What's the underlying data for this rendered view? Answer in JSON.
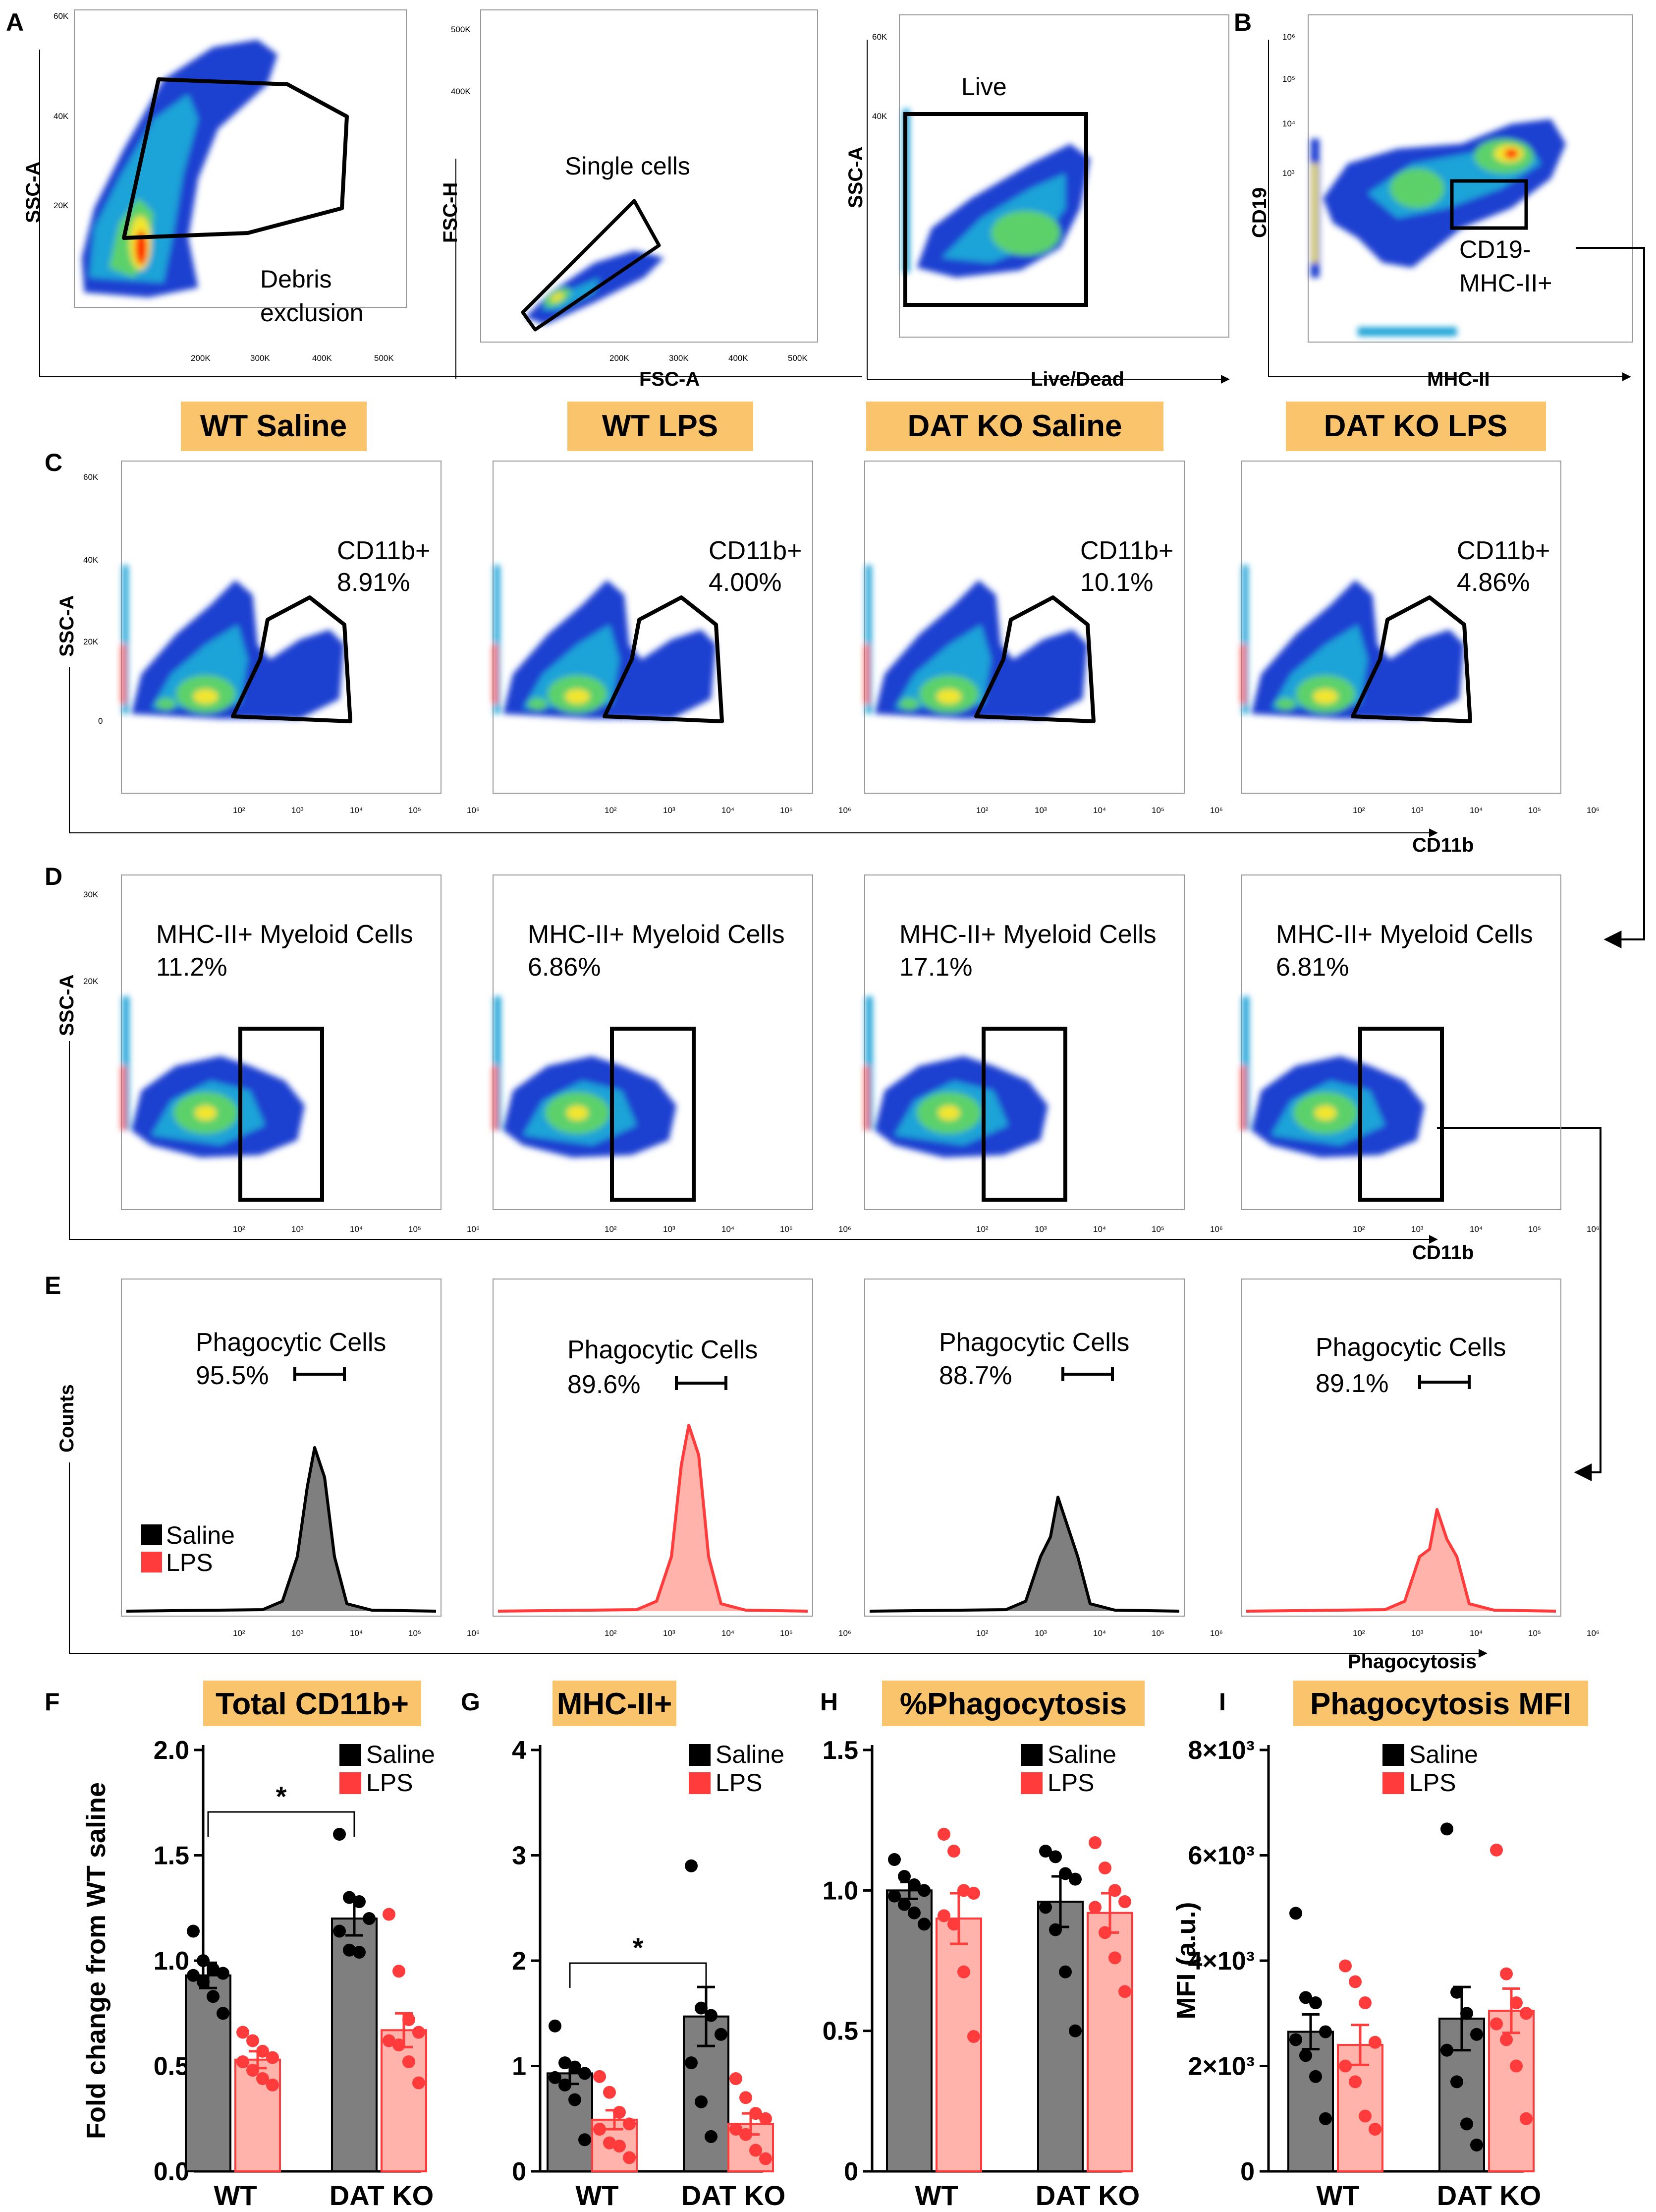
{
  "colors": {
    "saline": "#000000",
    "lps": "#ff3b3b",
    "saline_bar": "#7f7f7f",
    "lps_bar": "#ffb3ab",
    "header_bg": "#f9c46c",
    "density_outer": "#1a3fd0",
    "density_mid": "#1fa3d8",
    "density_core": "#5cd16a",
    "density_peak": "#f2e52e",
    "density_max": "#ff2a00"
  },
  "panel_letters": [
    "A",
    "B",
    "C",
    "D",
    "E",
    "F",
    "G",
    "H",
    "I"
  ],
  "group_headers": [
    "WT Saline",
    "WT LPS",
    "DAT KO Saline",
    "DAT KO LPS"
  ],
  "row_a": {
    "debris": {
      "y_label": "SSC-A",
      "y_ticks": [
        "60K",
        "40K",
        "20K"
      ],
      "x_ticks": [
        "200K",
        "300K",
        "400K",
        "500K"
      ],
      "gate": [
        "Debris",
        "exclusion"
      ]
    },
    "singlets": {
      "y_label": "FSC-H",
      "y_ticks": [
        "500K",
        "400K"
      ],
      "x_label": "FSC-A",
      "x_ticks": [
        "200K",
        "300K",
        "400K",
        "500K"
      ],
      "gate": "Single cells"
    },
    "live": {
      "y_label": "SSC-A",
      "y_ticks": [
        "60K",
        "40K"
      ],
      "x_label": "Live/Dead",
      "gate": "Live"
    },
    "b_plot": {
      "y_label": "CD19",
      "y_ticks": [
        "10⁶",
        "10⁵",
        "10⁴",
        "10³"
      ],
      "x_label": "MHC-II",
      "gate": [
        "CD19-",
        "MHC-II+"
      ]
    }
  },
  "log_ticks": [
    "10²",
    "10³",
    "10⁴",
    "10⁵",
    "10⁶"
  ],
  "row_c": {
    "y_label": "SSC-A",
    "y_ticks": [
      "60K",
      "40K",
      "20K",
      "0"
    ],
    "x_label": "CD11b",
    "gate_name": "CD11b+",
    "percents": [
      "8.91%",
      "4.00%",
      "10.1%",
      "4.86%"
    ]
  },
  "row_d": {
    "y_label": "SSC-A",
    "y_ticks": [
      "30K",
      "20K"
    ],
    "x_label": "CD11b",
    "gate_name": "MHC-II+ Myeloid Cells",
    "percents": [
      "11.2%",
      "6.86%",
      "17.1%",
      "6.81%"
    ]
  },
  "row_e": {
    "y_label": "Counts",
    "x_label": "Phagocytosis",
    "gate_name": "Phagocytic Cells",
    "percents": [
      "95.5%",
      "89.6%",
      "88.7%",
      "89.1%"
    ],
    "legend": [
      "Saline",
      "LPS"
    ]
  },
  "bar_legend": [
    "Saline",
    "LPS"
  ],
  "chart_data": [
    {
      "type": "bar",
      "panel": "F",
      "title": "Total CD11b+",
      "ylabel": "Fold change from WT saline",
      "ylim": [
        0,
        2.0
      ],
      "yticks": [
        "0.0",
        "0.5",
        "1.0",
        "1.5",
        "2.0"
      ],
      "categories": [
        "WT",
        "DAT KO"
      ],
      "series": [
        {
          "name": "Saline",
          "values": [
            0.93,
            1.2
          ],
          "sem": [
            0.06,
            0.08
          ],
          "points": [
            [
              1.14,
              1.0,
              0.96,
              0.94,
              0.93,
              0.9,
              0.83,
              0.75
            ],
            [
              1.6,
              1.3,
              1.28,
              1.2,
              1.14,
              1.05,
              1.04
            ]
          ]
        },
        {
          "name": "LPS",
          "values": [
            0.53,
            0.67
          ],
          "sem": [
            0.04,
            0.08
          ],
          "points": [
            [
              0.66,
              0.62,
              0.57,
              0.54,
              0.52,
              0.48,
              0.44,
              0.41
            ],
            [
              1.22,
              0.95,
              0.72,
              0.66,
              0.62,
              0.6,
              0.52,
              0.42
            ]
          ]
        }
      ],
      "significance": {
        "label": "*",
        "between": [
          "WT Saline",
          "DAT KO Saline"
        ]
      }
    },
    {
      "type": "bar",
      "panel": "G",
      "title": "MHC-II+",
      "ylabel": "",
      "ylim": [
        0,
        4
      ],
      "yticks": [
        "0",
        "1",
        "2",
        "3",
        "4"
      ],
      "categories": [
        "WT",
        "DAT KO"
      ],
      "series": [
        {
          "name": "Saline",
          "values": [
            0.93,
            1.47
          ],
          "sem": [
            0.1,
            0.28
          ],
          "points": [
            [
              1.38,
              1.03,
              0.99,
              0.93,
              0.89,
              0.82,
              0.68,
              0.3
            ],
            [
              2.9,
              1.55,
              1.48,
              1.3,
              1.03,
              0.66,
              0.33
            ]
          ]
        },
        {
          "name": "LPS",
          "values": [
            0.49,
            0.45
          ],
          "sem": [
            0.09,
            0.1
          ],
          "points": [
            [
              0.9,
              0.75,
              0.56,
              0.45,
              0.4,
              0.27,
              0.24,
              0.13
            ],
            [
              0.88,
              0.7,
              0.55,
              0.5,
              0.4,
              0.35,
              0.2,
              0.12
            ]
          ]
        }
      ],
      "significance": {
        "label": "*",
        "between": [
          "WT Saline",
          "DAT KO Saline"
        ]
      }
    },
    {
      "type": "bar",
      "panel": "H",
      "title": "%Phagocytosis",
      "ylabel": "",
      "ylim": [
        0,
        1.5
      ],
      "yticks": [
        "0",
        "0.5",
        "1.0",
        "1.5"
      ],
      "categories": [
        "WT",
        "DAT KO"
      ],
      "series": [
        {
          "name": "Saline",
          "values": [
            1.0,
            0.96
          ],
          "sem": [
            0.03,
            0.09
          ],
          "points": [
            [
              1.11,
              1.05,
              1.02,
              1.0,
              0.98,
              0.95,
              0.92,
              0.88
            ],
            [
              1.14,
              1.12,
              1.06,
              1.04,
              0.94,
              0.86,
              0.71,
              0.5
            ]
          ]
        },
        {
          "name": "LPS",
          "values": [
            0.9,
            0.92
          ],
          "sem": [
            0.09,
            0.07
          ],
          "points": [
            [
              1.2,
              1.14,
              1.0,
              0.99,
              0.91,
              0.88,
              0.71,
              0.48
            ],
            [
              1.17,
              1.08,
              1.0,
              0.96,
              0.94,
              0.85,
              0.76,
              0.64
            ]
          ]
        }
      ]
    },
    {
      "type": "bar",
      "panel": "I",
      "title": "Phagocytosis MFI",
      "ylabel": "MFI (a.u.)",
      "ylim": [
        0,
        8000
      ],
      "yticks": [
        "0",
        "2×10³",
        "4×10³",
        "6×10³",
        "8×10³"
      ],
      "categories": [
        "WT",
        "DAT KO"
      ],
      "series": [
        {
          "name": "Saline",
          "values": [
            2650,
            2900
          ],
          "sem": [
            330,
            600
          ],
          "points": [
            [
              4900,
              3300,
              3200,
              2650,
              2500,
              2200,
              1800,
              1000
            ],
            [
              6500,
              3400,
              3000,
              2600,
              2300,
              1700,
              900,
              500
            ]
          ]
        },
        {
          "name": "LPS",
          "values": [
            2400,
            3050
          ],
          "sem": [
            380,
            420
          ],
          "points": [
            [
              3900,
              3600,
              3200,
              2450,
              2000,
              1700,
              1050,
              800
            ],
            [
              6100,
              3750,
              3200,
              3000,
              2800,
              2500,
              2000,
              1000
            ]
          ]
        }
      ]
    }
  ]
}
